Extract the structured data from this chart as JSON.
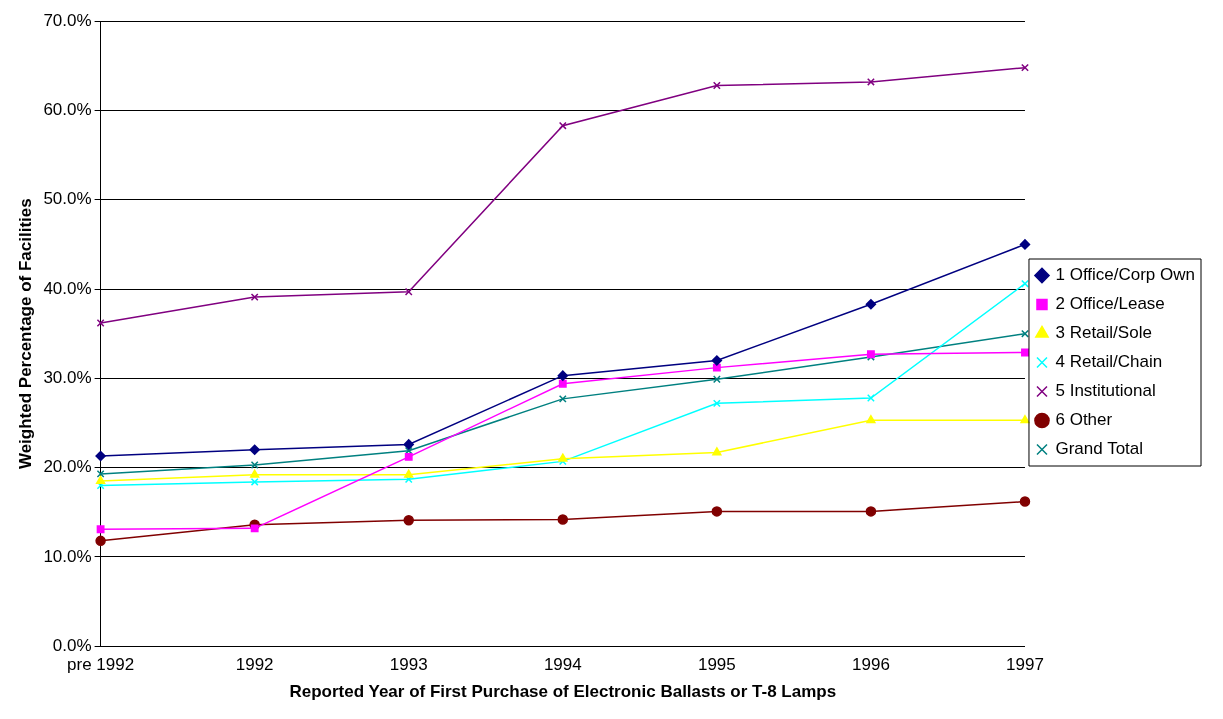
{
  "chart_data": {
    "type": "line",
    "xlabel": "Reported Year of First Purchase of Electronic Ballasts or T-8 Lamps",
    "ylabel": "Weighted Percentage of Facilities",
    "categories": [
      "pre 1992",
      "1992",
      "1993",
      "1994",
      "1995",
      "1996",
      "1997"
    ],
    "series": [
      {
        "name": "1 Office/Corp Own",
        "color": "#000080",
        "marker": "diamond",
        "values": [
          21.3,
          22.0,
          22.6,
          30.3,
          32.0,
          38.3,
          45.0
        ]
      },
      {
        "name": "2 Office/Lease",
        "color": "#ff00ff",
        "marker": "square",
        "values": [
          13.1,
          13.2,
          21.2,
          29.4,
          31.2,
          32.7,
          32.9
        ]
      },
      {
        "name": "3 Retail/Sole",
        "color": "#ffff00",
        "marker": "triangle",
        "values": [
          18.5,
          19.2,
          19.2,
          21.0,
          21.7,
          25.3,
          25.3
        ]
      },
      {
        "name": "4 Retail/Chain",
        "color": "#00ffff",
        "marker": "cross",
        "values": [
          18.0,
          18.4,
          18.7,
          20.7,
          27.2,
          27.8,
          40.6
        ]
      },
      {
        "name": "5 Institutional",
        "color": "#800080",
        "marker": "cross",
        "values": [
          36.2,
          39.1,
          39.7,
          58.3,
          62.8,
          63.2,
          64.8
        ]
      },
      {
        "name": "6 Other",
        "color": "#800000",
        "marker": "circle",
        "values": [
          11.8,
          13.6,
          14.1,
          14.2,
          15.1,
          15.1,
          16.2
        ]
      },
      {
        "name": "Grand Total",
        "color": "#008080",
        "marker": "cross",
        "values": [
          19.3,
          20.3,
          21.9,
          27.7,
          29.9,
          32.4,
          35.0
        ]
      }
    ],
    "ylim": [
      0,
      70
    ],
    "yticks": [
      {
        "value": 0,
        "label": "0.0%"
      },
      {
        "value": 10,
        "label": "10.0%"
      },
      {
        "value": 20,
        "label": "20.0%"
      },
      {
        "value": 30,
        "label": "30.0%"
      },
      {
        "value": 40,
        "label": "40.0%"
      },
      {
        "value": 50,
        "label": "50.0%"
      },
      {
        "value": 60,
        "label": "60.0%"
      },
      {
        "value": 70,
        "label": "70.0%"
      }
    ],
    "grid": "y",
    "legend": "right"
  }
}
